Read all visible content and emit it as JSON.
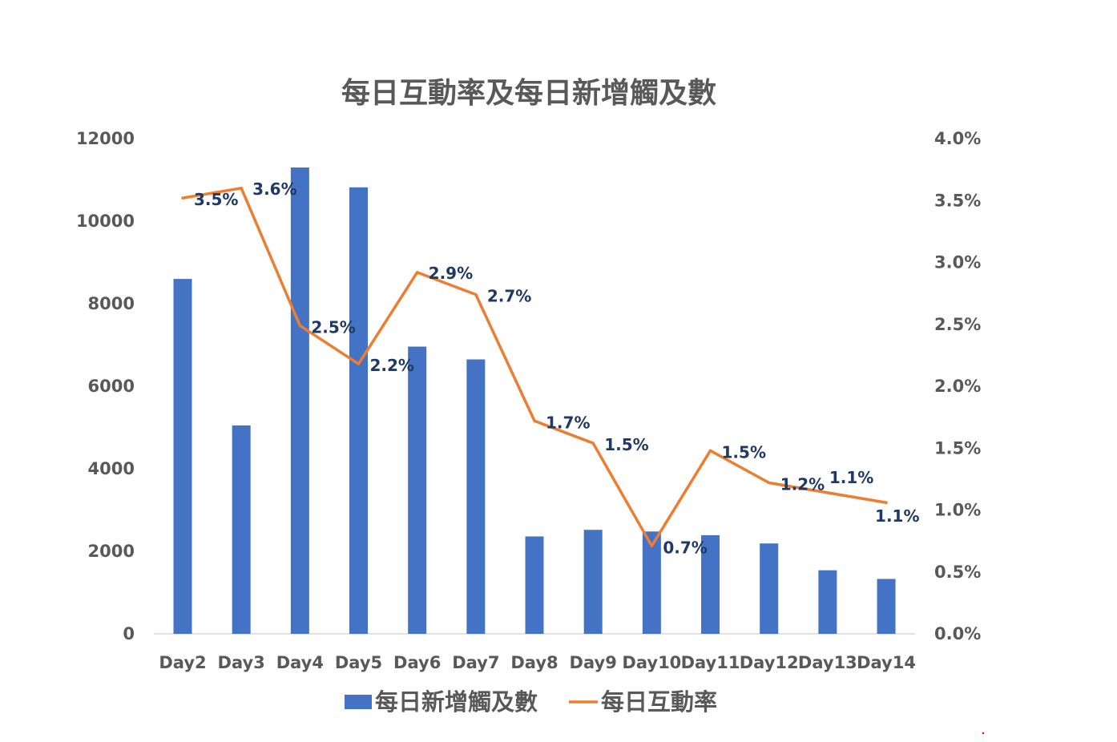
{
  "chart_data": {
    "type": "bar",
    "title": "每日互動率及每日新增觸及數",
    "categories": [
      "Day2",
      "Day3",
      "Day4",
      "Day5",
      "Day6",
      "Day7",
      "Day8",
      "Day9",
      "Day10",
      "Day11",
      "Day12",
      "Day13",
      "Day14"
    ],
    "series": [
      {
        "name": "每日新增觸及數",
        "type": "bar",
        "axis": "left",
        "color": "#4472c4",
        "values": [
          8600,
          5050,
          11300,
          10820,
          6960,
          6650,
          2360,
          2520,
          2480,
          2390,
          2190,
          1540,
          1330
        ]
      },
      {
        "name": "每日互動率",
        "type": "line",
        "axis": "right",
        "color": "#ed7d31",
        "values": [
          0.0352,
          0.036,
          0.0249,
          0.0218,
          0.0292,
          0.0274,
          0.0172,
          0.0154,
          0.0071,
          0.0148,
          0.0122,
          0.0114,
          0.0106
        ],
        "labels": [
          "3.5%",
          "3.6%",
          "2.5%",
          "2.2%",
          "2.9%",
          "2.7%",
          "1.7%",
          "1.5%",
          "0.7%",
          "1.5%",
          "1.2%",
          "1.1%",
          "1.1%"
        ]
      }
    ],
    "y_left": {
      "min": 0,
      "max": 12000,
      "ticks": [
        "0",
        "2000",
        "4000",
        "6000",
        "8000",
        "10000",
        "12000"
      ]
    },
    "y_right": {
      "min": 0,
      "max": 0.04,
      "ticks": [
        "0.0%",
        "0.5%",
        "1.0%",
        "1.5%",
        "2.0%",
        "2.5%",
        "3.0%",
        "3.5%",
        "4.0%"
      ]
    },
    "grid": false,
    "legend": "bottom"
  }
}
